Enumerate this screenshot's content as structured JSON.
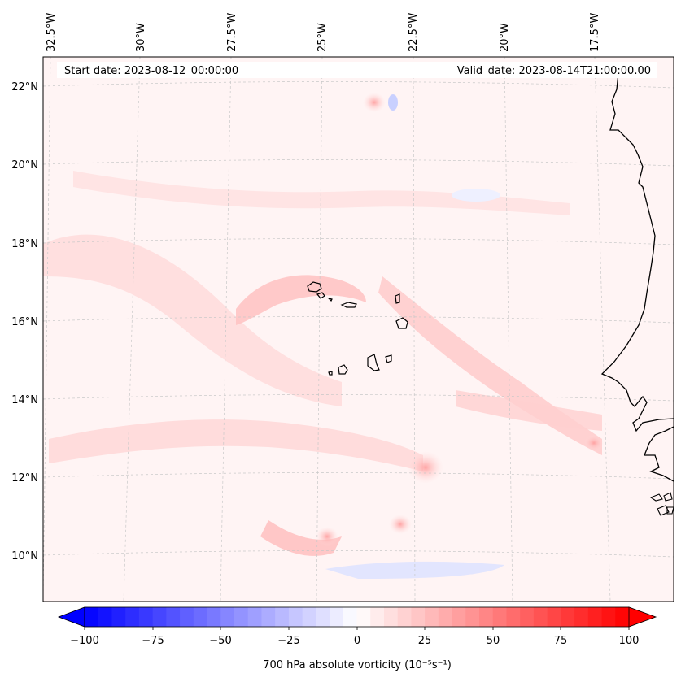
{
  "map": {
    "header": {
      "start_date": "Start date: 2023-08-12_00:00:00",
      "valid_date": "Valid_date: 2023-08-14T21:00:00.00"
    },
    "lon_labels": [
      "32.5°W",
      "30°W",
      "27.5°W",
      "25°W",
      "22.5°W",
      "20°W",
      "17.5°W"
    ],
    "lat_labels": [
      "22°N",
      "20°N",
      "18°N",
      "16°N",
      "14°N",
      "12°N",
      "10°N"
    ],
    "colorbar": {
      "ticks": [
        "−100",
        "−75",
        "−50",
        "−25",
        "0",
        "25",
        "50",
        "75",
        "100"
      ],
      "label": "700 hPa absolute vorticity (10⁻⁵s⁻¹)",
      "min": -100,
      "max": 100,
      "neg_color": "#0000ff",
      "zero_color": "#ffffff",
      "pos_color": "#ff0000"
    },
    "colors": {
      "land_outline": "#000000",
      "grid": "#c8c8c8",
      "background_tint": "#fff5f5"
    }
  }
}
